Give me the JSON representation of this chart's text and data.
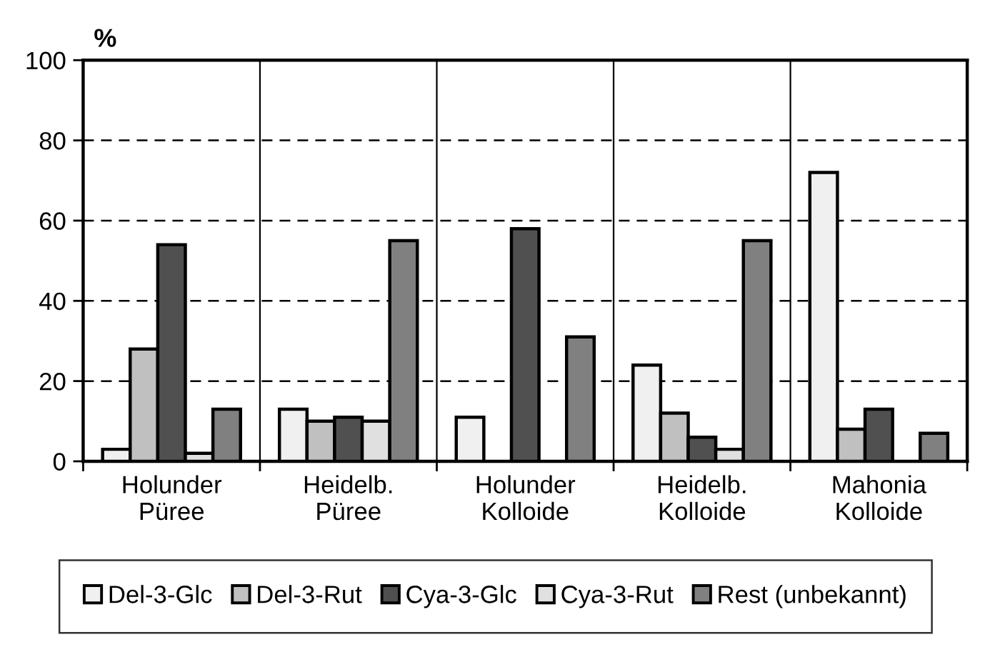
{
  "chart_data": {
    "type": "bar",
    "ylabel": "%",
    "categories": [
      "Holunder\nPüree",
      "Heidelb.\nPüree",
      "Holunder\nKolloide",
      "Heidelb.\nKolloide",
      "Mahonia\nKolloide"
    ],
    "series": [
      {
        "name": "Del-3-Glc",
        "color": "#f0f0f0",
        "values": [
          3,
          13,
          11,
          24,
          72
        ]
      },
      {
        "name": "Del-3-Rut",
        "color": "#c0c0c0",
        "values": [
          28,
          10,
          null,
          12,
          8
        ]
      },
      {
        "name": "Cya-3-Glc",
        "color": "#505050",
        "values": [
          54,
          11,
          58,
          6,
          13
        ]
      },
      {
        "name": "Cya-3-Rut",
        "color": "#e0e0e0",
        "values": [
          2,
          10,
          null,
          3,
          null
        ]
      },
      {
        "name": "Rest (unbekannt)",
        "color": "#808080",
        "values": [
          13,
          55,
          31,
          55,
          7
        ]
      }
    ],
    "ylim": [
      0,
      100
    ],
    "yticks": [
      0,
      20,
      40,
      60,
      80,
      100
    ],
    "grid": true,
    "legend": "bottom"
  }
}
